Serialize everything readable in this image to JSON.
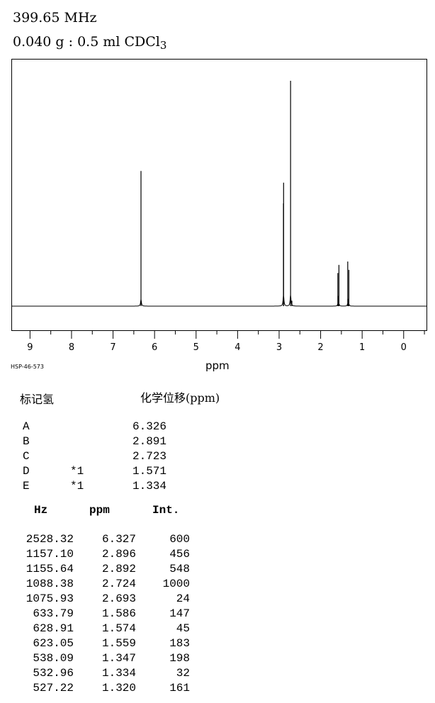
{
  "header": {
    "frequency": "399.65 MHz",
    "sample_main": "0.040 g : 0.5 ml CDCl",
    "sample_sub": "3"
  },
  "spectrum_code": "HSP-46-573",
  "chart_data": {
    "type": "line",
    "xlabel": "ppm",
    "xlim": [
      9.45,
      -0.55
    ],
    "x_reversed": true,
    "x_ticks": [
      9,
      8,
      7,
      6,
      5,
      4,
      3,
      2,
      1,
      0
    ],
    "ylim": [
      0,
      1000
    ],
    "grid": false,
    "peaks": [
      {
        "ppm": 6.327,
        "int": 600
      },
      {
        "ppm": 2.896,
        "int": 456
      },
      {
        "ppm": 2.892,
        "int": 548
      },
      {
        "ppm": 2.724,
        "int": 1000
      },
      {
        "ppm": 2.693,
        "int": 24
      },
      {
        "ppm": 1.586,
        "int": 147
      },
      {
        "ppm": 1.574,
        "int": 45
      },
      {
        "ppm": 1.559,
        "int": 183
      },
      {
        "ppm": 1.347,
        "int": 198
      },
      {
        "ppm": 1.334,
        "int": 32
      },
      {
        "ppm": 1.32,
        "int": 161
      }
    ]
  },
  "assignments": {
    "label_header": "标记氢",
    "shift_header": "化学位移(ppm)",
    "rows": [
      {
        "label": "A",
        "note": "",
        "value": "6.326"
      },
      {
        "label": "B",
        "note": "",
        "value": "2.891"
      },
      {
        "label": "C",
        "note": "",
        "value": "2.723"
      },
      {
        "label": "D",
        "note": "*1",
        "value": "1.571"
      },
      {
        "label": "E",
        "note": "*1",
        "value": "1.334"
      }
    ]
  },
  "peak_table": {
    "headers": {
      "hz": "Hz",
      "ppm": "ppm",
      "int": "Int."
    },
    "rows": [
      {
        "hz": "2528.32",
        "ppm": "6.327",
        "int": "600"
      },
      {
        "hz": "1157.10",
        "ppm": "2.896",
        "int": "456"
      },
      {
        "hz": "1155.64",
        "ppm": "2.892",
        "int": "548"
      },
      {
        "hz": "1088.38",
        "ppm": "2.724",
        "int": "1000"
      },
      {
        "hz": "1075.93",
        "ppm": "2.693",
        "int": "24"
      },
      {
        "hz": "633.79",
        "ppm": "1.586",
        "int": "147"
      },
      {
        "hz": "628.91",
        "ppm": "1.574",
        "int": "45"
      },
      {
        "hz": "623.05",
        "ppm": "1.559",
        "int": "183"
      },
      {
        "hz": "538.09",
        "ppm": "1.347",
        "int": "198"
      },
      {
        "hz": "532.96",
        "ppm": "1.334",
        "int": "32"
      },
      {
        "hz": "527.22",
        "ppm": "1.320",
        "int": "161"
      }
    ]
  }
}
